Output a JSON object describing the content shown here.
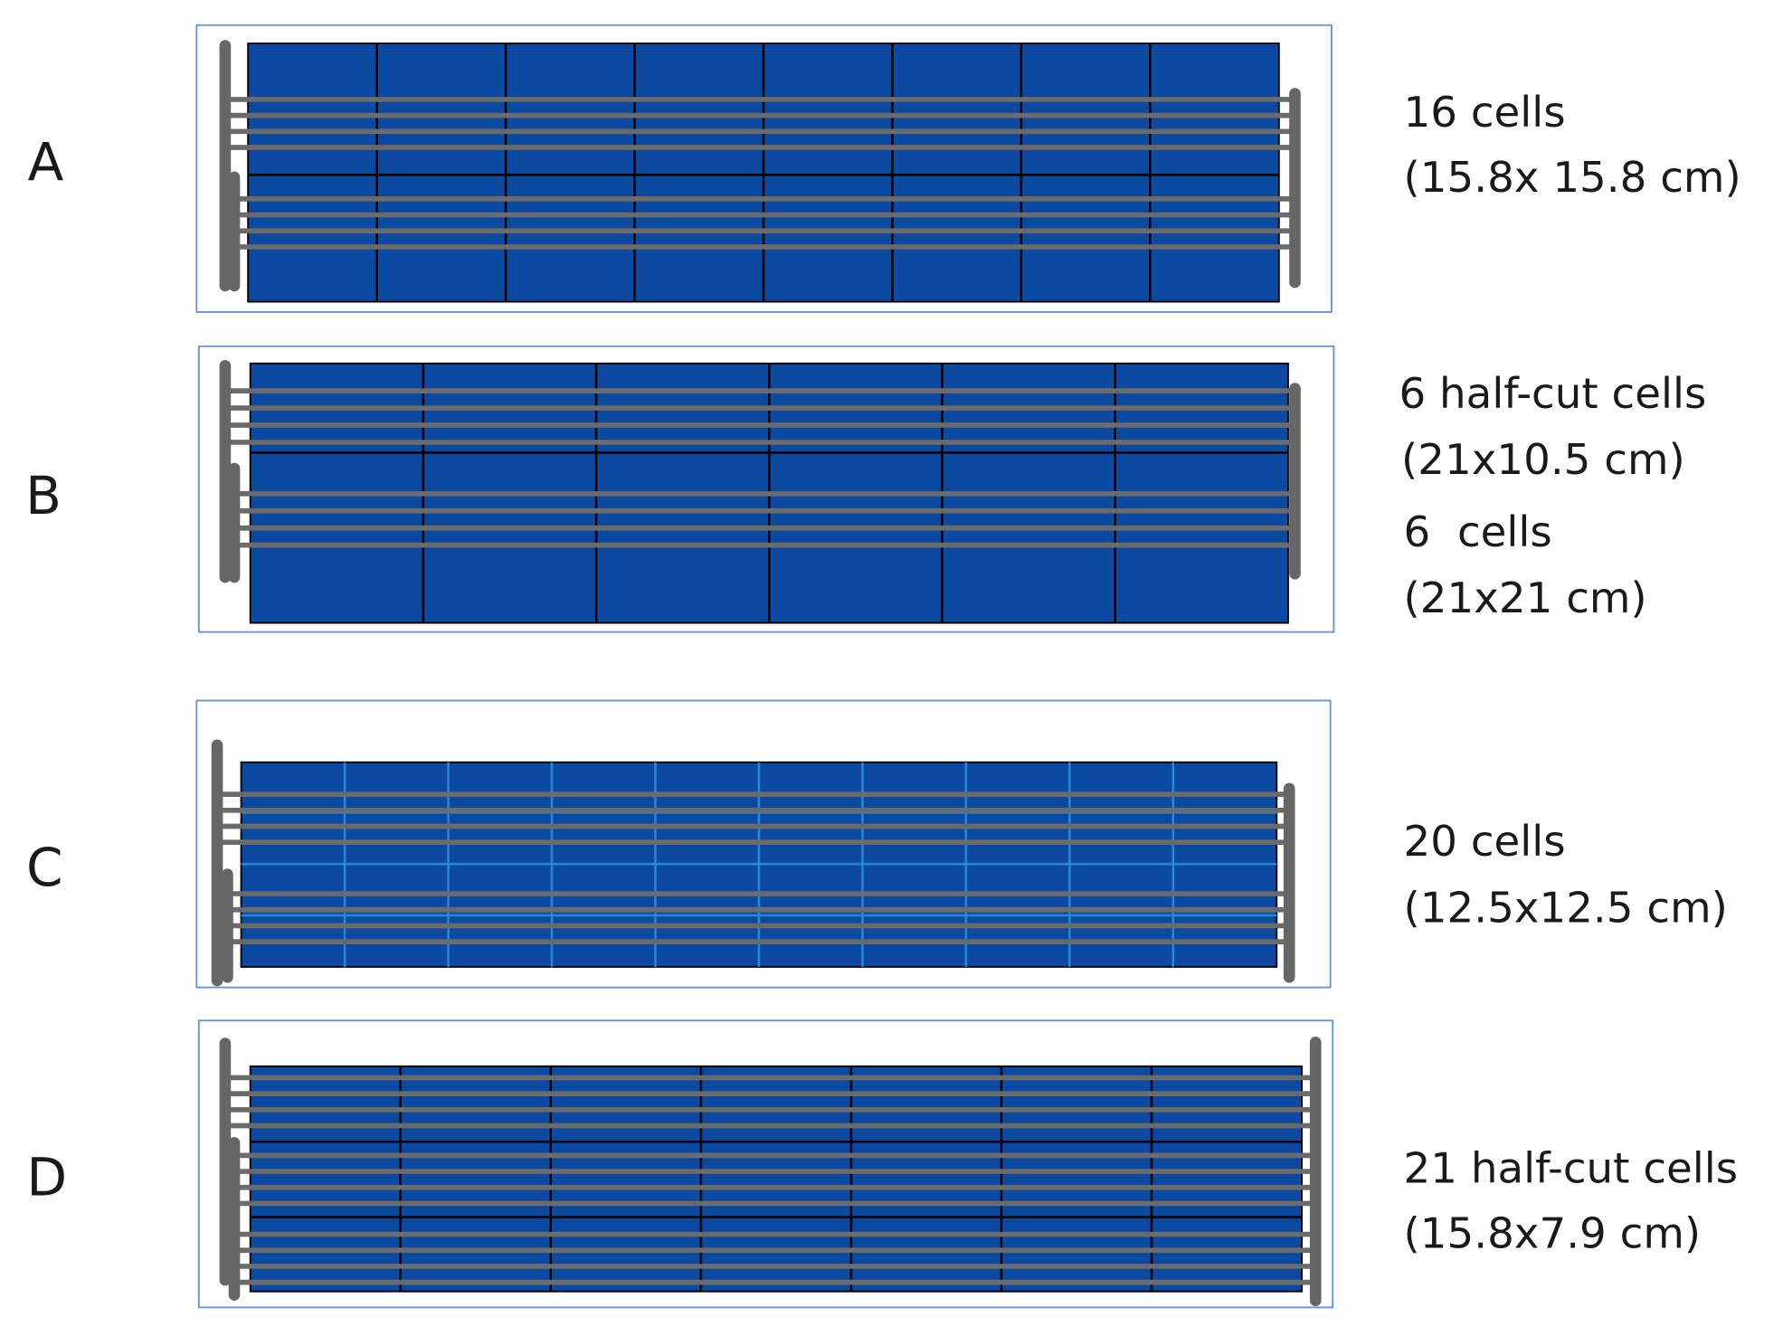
{
  "panels": [
    {
      "label": "A",
      "lines": [
        "16 cells",
        "(15.8x 15.8 cm)"
      ]
    },
    {
      "label": "B",
      "lines": [
        "6 half-cut cells",
        "(21x10.5 cm)",
        "6  cells",
        "(21x21 cm)"
      ]
    },
    {
      "label": "C",
      "lines": [
        "20 cells",
        "(12.5x12.5 cm)"
      ]
    },
    {
      "label": "D",
      "lines": [
        "21 half-cut cells",
        "(15.8x7.9 cm)"
      ]
    }
  ]
}
